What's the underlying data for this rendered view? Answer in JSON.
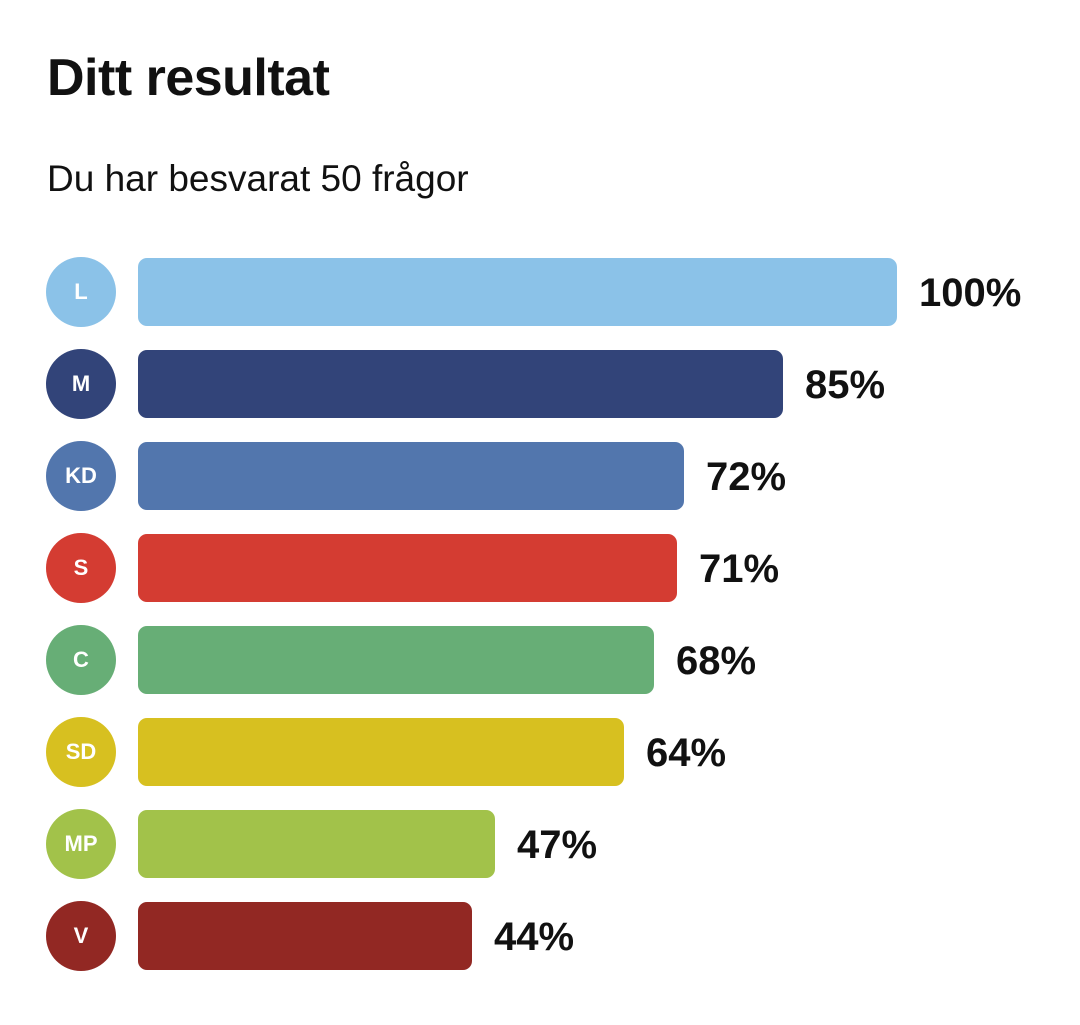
{
  "header": {
    "title": "Ditt resultat",
    "subtitle": "Du har besvarat 50 frågor"
  },
  "chart_data": {
    "type": "bar",
    "orientation": "horizontal",
    "title": "Ditt resultat",
    "subtitle": "Du har besvarat 50 frågor",
    "xlabel": "",
    "ylabel": "",
    "xlim": [
      0,
      100
    ],
    "grid": false,
    "legend": "none",
    "categories": [
      "L",
      "M",
      "KD",
      "S",
      "C",
      "SD",
      "MP",
      "V"
    ],
    "values": [
      100,
      85,
      72,
      71,
      68,
      64,
      47,
      44
    ],
    "value_labels": [
      "100%",
      "85%",
      "72%",
      "71%",
      "68%",
      "64%",
      "47%",
      "44%"
    ],
    "colors": [
      "#8bc2e8",
      "#324479",
      "#5276ad",
      "#d43c32",
      "#67ae76",
      "#d7c020",
      "#a2c24a",
      "#922823"
    ]
  }
}
